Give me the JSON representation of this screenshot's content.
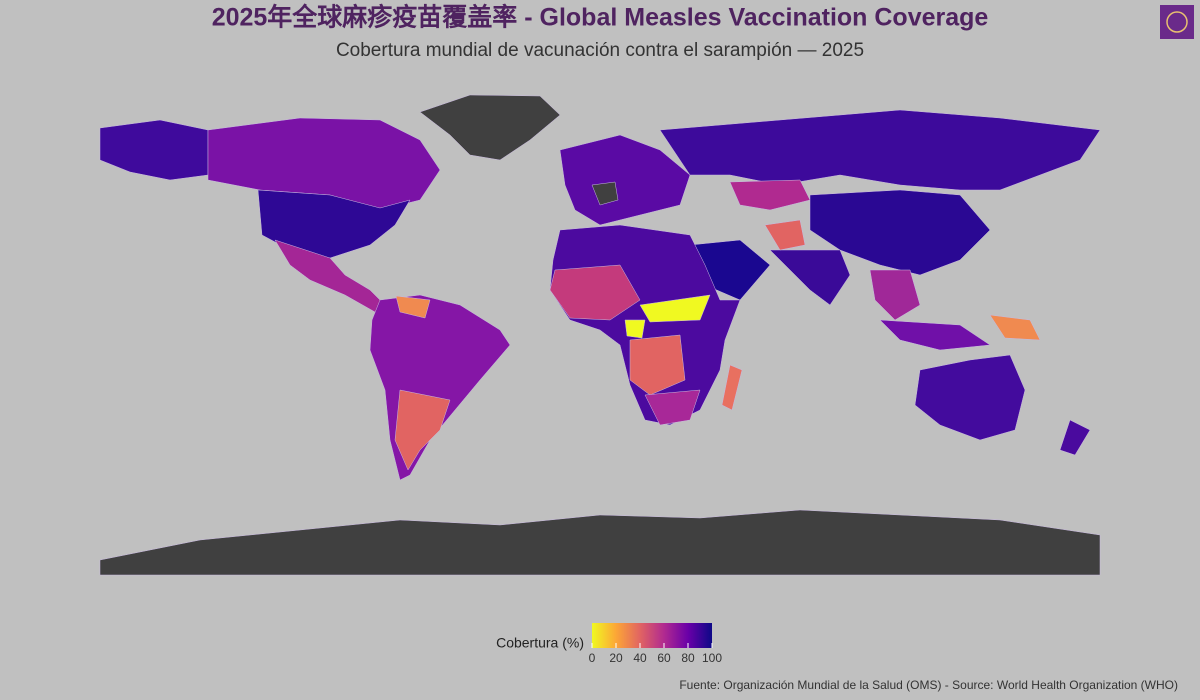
{
  "chart_data": {
    "type": "choropleth",
    "title": "2025年全球麻疹疫苗覆盖率 - Global Measles Vaccination Coverage",
    "subtitle": "Cobertura mundial de vacunación contra el sarampión — 2025",
    "legend_title": "Cobertura (%)",
    "colorbar_lim": [
      0,
      100
    ],
    "colorbar_ticks": [
      0,
      20,
      40,
      60,
      80,
      100
    ],
    "colormap": [
      "#f0f921",
      "#fca636",
      "#e16462",
      "#b12a90",
      "#6a00a8",
      "#0d0887"
    ],
    "source": "Fuente: Organización Mundial de la Salud (OMS) - Source: World Health Organization (WHO)"
  }
}
